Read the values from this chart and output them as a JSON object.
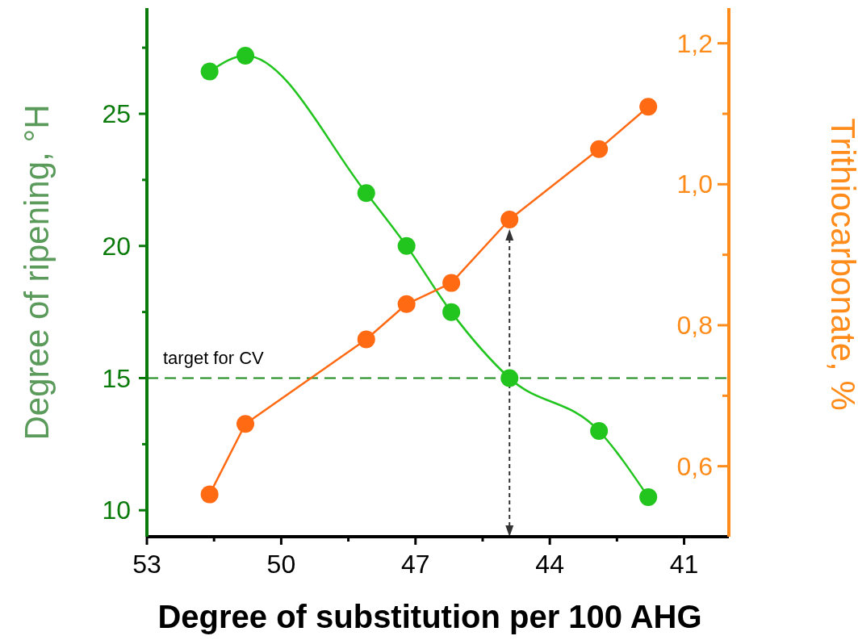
{
  "chart_data": {
    "type": "line",
    "xlabel": "Degree of substitution per 100 AHG",
    "ylabel": "Degree of ripening, °H",
    "y2label": "Trithiocarbonate, %",
    "xlim": [
      53,
      40
    ],
    "xticks": [
      53,
      {
        "value": 51.5,
        "label": null
      },
      50,
      {
        "value": 48.5,
        "label": null
      },
      47,
      {
        "value": 45.5,
        "label": null
      },
      44,
      {
        "value": 42.5,
        "label": null
      },
      41
    ],
    "ylim": [
      9,
      29
    ],
    "yticks": [
      10,
      {
        "value": 12.5,
        "label": null
      },
      15,
      {
        "value": 17.5,
        "label": null
      },
      20,
      {
        "value": 22.5,
        "label": null
      },
      25,
      {
        "value": 27.5,
        "label": null
      }
    ],
    "y2lim": [
      0.5,
      1.25
    ],
    "y2ticks": [
      {
        "value": 0.6,
        "label": "0,6"
      },
      {
        "value": 0.7,
        "label": null
      },
      {
        "value": 0.8,
        "label": "0,8"
      },
      {
        "value": 0.9,
        "label": null
      },
      {
        "value": 1.0,
        "label": "1,0"
      },
      {
        "value": 1.1,
        "label": null
      },
      {
        "value": 1.2,
        "label": "1,2"
      }
    ],
    "x": [
      51.6,
      50.8,
      48.1,
      47.2,
      46.2,
      44.9,
      42.9,
      41.8
    ],
    "series": [
      {
        "color": "#22c41e",
        "values": [
          26.6,
          27.2,
          22,
          20,
          17.5,
          15,
          13,
          10.5
        ]
      },
      {
        "color": "#ff6a13",
        "axis": "y2",
        "values": [
          0.56,
          0.66,
          0.78,
          0.83,
          0.86,
          0.95,
          1.05,
          1.11
        ]
      }
    ],
    "ref_lines": [
      {
        "axis": "y",
        "value": 15,
        "label": "target for CV",
        "color": "#1a8a1a",
        "line_style": "dashed"
      },
      {
        "axis": "x",
        "value": 44.9,
        "color": "#333333",
        "line_style": "dashed"
      }
    ],
    "marker": "circle",
    "grid": false
  }
}
